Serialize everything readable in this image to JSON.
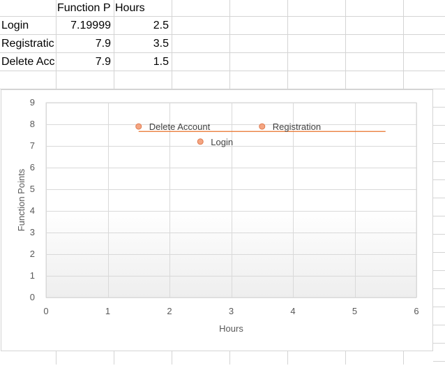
{
  "sheet": {
    "headers": [
      "Function P",
      "Hours"
    ],
    "rows": [
      {
        "label": "Login",
        "fp": "7.19999",
        "hours": "2.5"
      },
      {
        "label": "Registratic",
        "fp": "7.9",
        "hours": "3.5"
      },
      {
        "label": "Delete Acc",
        "fp": "7.9",
        "hours": "1.5"
      }
    ]
  },
  "chart_data": {
    "type": "scatter",
    "xlabel": "Hours",
    "ylabel": "Function Points",
    "xlim": [
      0,
      6
    ],
    "ylim": [
      0,
      9
    ],
    "xticks": [
      0,
      1,
      2,
      3,
      4,
      5,
      6
    ],
    "yticks": [
      0,
      1,
      2,
      3,
      4,
      5,
      6,
      7,
      8,
      9
    ],
    "grid": true,
    "points": [
      {
        "label": "Login",
        "x": 2.5,
        "y": 7.2
      },
      {
        "label": "Registration",
        "x": 3.5,
        "y": 7.9
      },
      {
        "label": "Delete Account",
        "x": 1.5,
        "y": 7.9
      }
    ],
    "trendline": {
      "x": [
        1.5,
        5.5
      ],
      "y": [
        7.67,
        7.67
      ]
    },
    "colors": {
      "marker": "#f4a582",
      "marker_edge": "#e07b4f",
      "trendline": "#e8722a",
      "grid": "#d9d9d9"
    }
  }
}
